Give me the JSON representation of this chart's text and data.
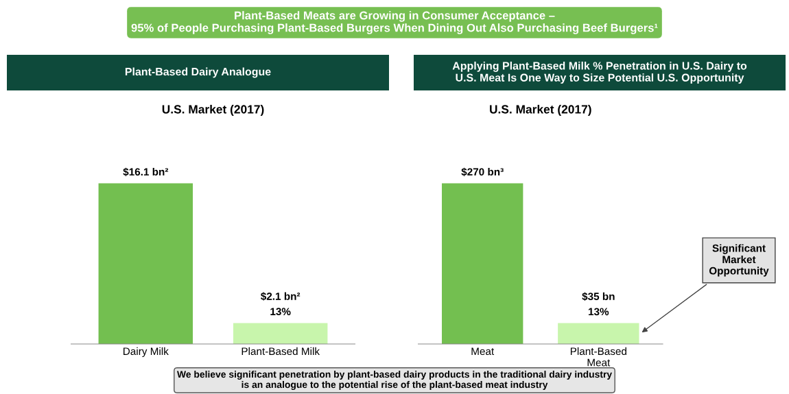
{
  "chart_data": [
    {
      "type": "bar",
      "title": "Plant-Based Dairy Analogue",
      "subtitle": "U.S. Market (2017)",
      "categories": [
        "Dairy Milk",
        "Plant-Based Milk"
      ],
      "values": [
        16.1,
        2.1
      ],
      "colors": [
        "#73bf50",
        "#c8f5ac"
      ],
      "value_labels": [
        "$16.1 bn²",
        "$2.1 bn²"
      ],
      "tick_labels": "x",
      "grid": false,
      "legend": false,
      "annotations": [
        {
          "text": "13%",
          "x": "Plant-Based Milk",
          "y": 2.1
        },
        "Plant-Based Meats are Growing in Consumer Acceptance –\n95% of People Purchasing Plant-Based Burgers When Dining Out Also Purchasing Beef Burgers¹",
        "We believe significant penetration by plant-based dairy products in the traditional dairy industry\nis an analogue to the potential rise of the plant-based meat industry"
      ]
    },
    {
      "type": "bar",
      "title": "Applying Plant-Based Milk % Penetration in U.S. Dairy to\nU.S. Meat Is One Way to Size Potential U.S. Opportunity",
      "subtitle": "U.S. Market (2017)",
      "categories": [
        "Meat",
        "Plant-Based\nMeat"
      ],
      "values": [
        270,
        35
      ],
      "colors": [
        "#73bf50",
        "#c8f5ac"
      ],
      "value_labels": [
        "$270 bn³",
        "$35 bn"
      ],
      "tick_labels": "x",
      "grid": false,
      "legend": false,
      "annotations": [
        {
          "text": "13%",
          "x": "Plant-Based\nMeat",
          "y": 35
        },
        "Significant\nMarket\nOpportunity"
      ]
    }
  ]
}
